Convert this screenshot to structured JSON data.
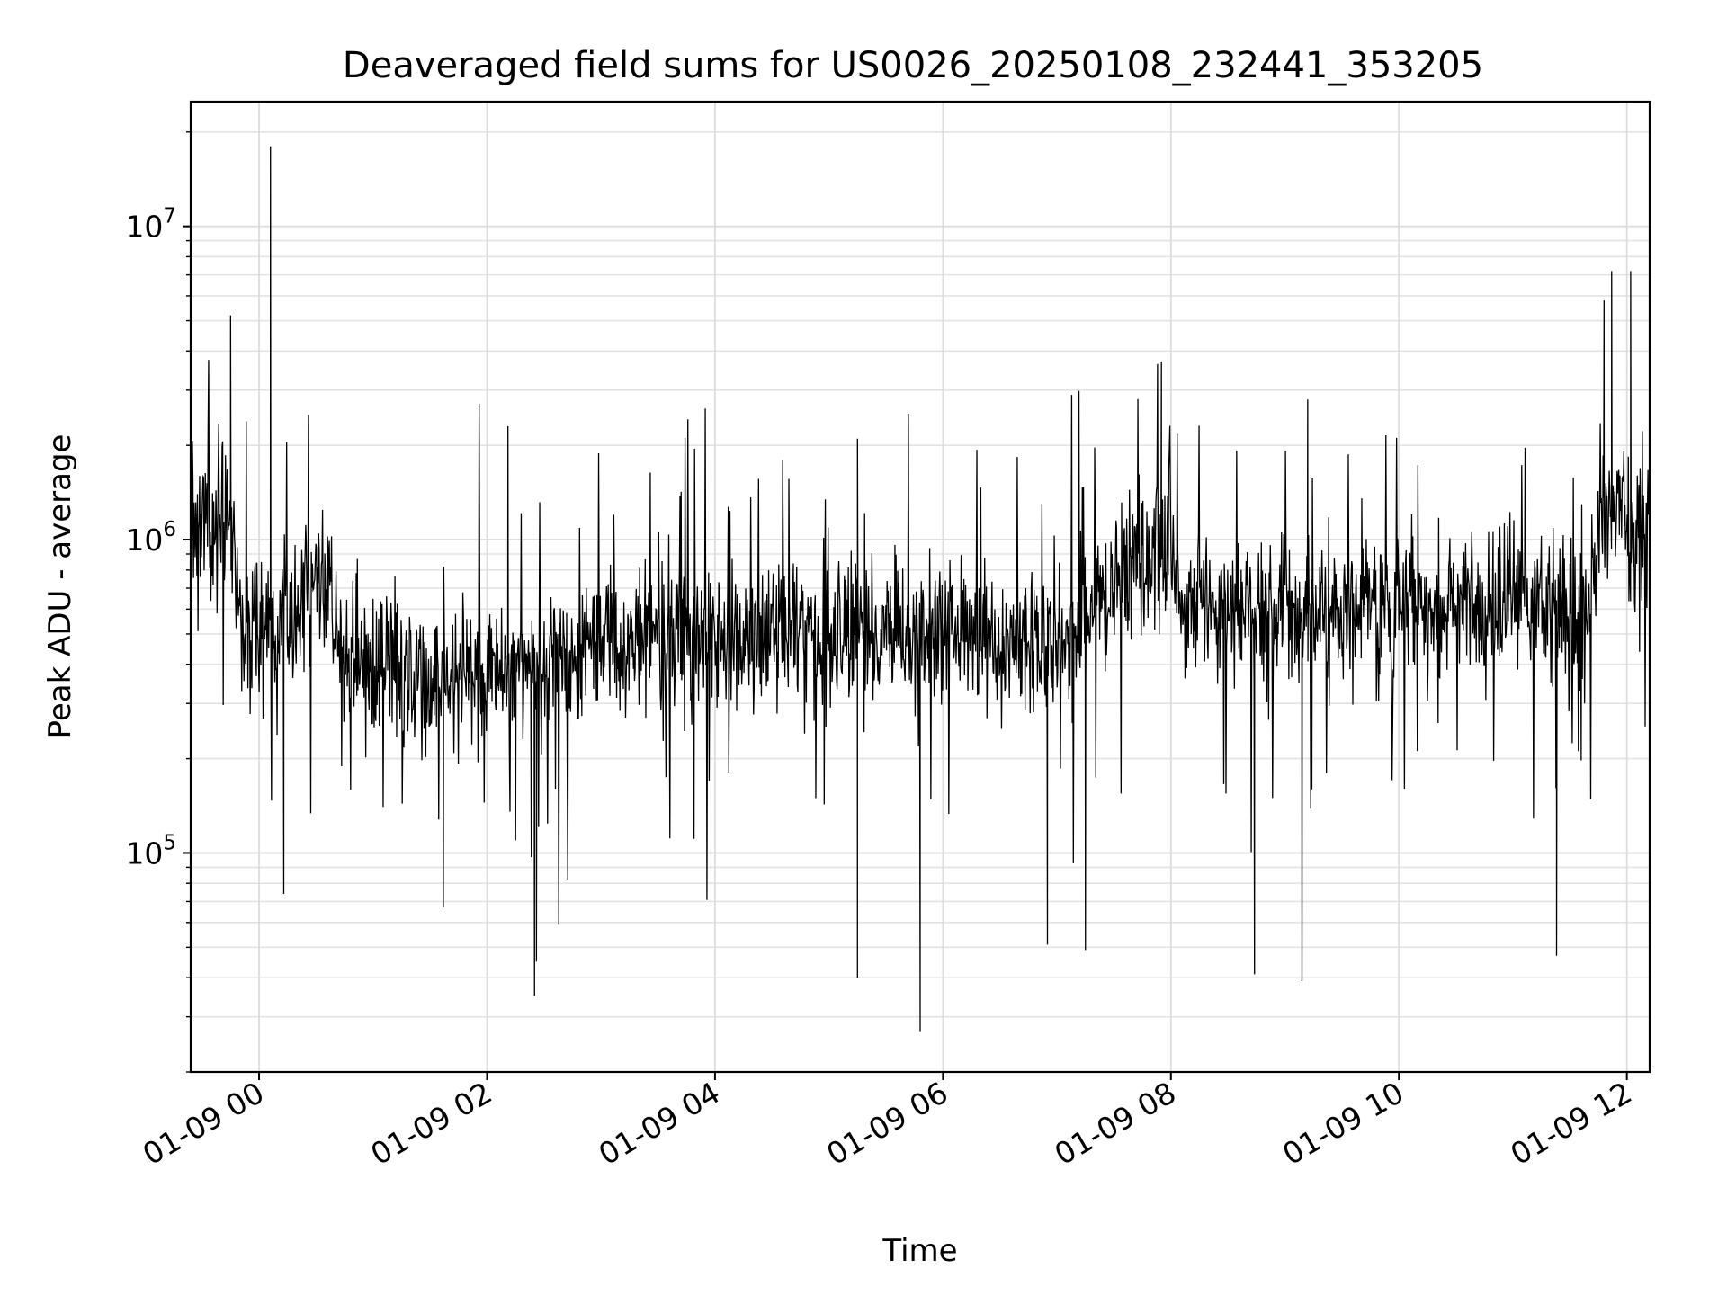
{
  "chart_data": {
    "type": "line",
    "title": "Deaveraged field sums for US0026_20250108_232441_353205",
    "xlabel": "Time",
    "ylabel": "Peak ADU - average",
    "yscale": "log",
    "ylim": [
      20000,
      25000000
    ],
    "xlim": [
      "2025-01-08 23:24",
      "2025-01-09 12:12"
    ],
    "grid": true,
    "legend": "none",
    "x_ticks": [
      {
        "t": "2025-01-09 00:00",
        "label": "01-09 00"
      },
      {
        "t": "2025-01-09 02:00",
        "label": "01-09 02"
      },
      {
        "t": "2025-01-09 04:00",
        "label": "01-09 04"
      },
      {
        "t": "2025-01-09 06:00",
        "label": "01-09 06"
      },
      {
        "t": "2025-01-09 08:00",
        "label": "01-09 08"
      },
      {
        "t": "2025-01-09 10:00",
        "label": "01-09 10"
      },
      {
        "t": "2025-01-09 12:00",
        "label": "01-09 12"
      }
    ],
    "y_ticks": [
      {
        "value": 100000,
        "base": "10",
        "exp": "5"
      },
      {
        "value": 1000000,
        "base": "10",
        "exp": "6"
      },
      {
        "value": 10000000,
        "base": "10",
        "exp": "7"
      }
    ],
    "series": [
      {
        "color": "#000000",
        "baseline": [
          {
            "t": "2025-01-08 23:24",
            "y": 1100000
          },
          {
            "t": "2025-01-08 23:45",
            "y": 1200000
          },
          {
            "t": "2025-01-08 23:50",
            "y": 550000
          },
          {
            "t": "2025-01-09 00:10",
            "y": 450000
          },
          {
            "t": "2025-01-09 00:25",
            "y": 650000
          },
          {
            "t": "2025-01-09 00:35",
            "y": 800000
          },
          {
            "t": "2025-01-09 00:45",
            "y": 380000
          },
          {
            "t": "2025-01-09 02:00",
            "y": 380000
          },
          {
            "t": "2025-01-09 03:00",
            "y": 430000
          },
          {
            "t": "2025-01-09 04:00",
            "y": 480000
          },
          {
            "t": "2025-01-09 05:00",
            "y": 520000
          },
          {
            "t": "2025-01-09 06:00",
            "y": 480000
          },
          {
            "t": "2025-01-09 07:00",
            "y": 480000
          },
          {
            "t": "2025-01-09 07:40",
            "y": 800000
          },
          {
            "t": "2025-01-09 08:00",
            "y": 1000000
          },
          {
            "t": "2025-01-09 08:05",
            "y": 620000
          },
          {
            "t": "2025-01-09 09:00",
            "y": 580000
          },
          {
            "t": "2025-01-09 10:00",
            "y": 600000
          },
          {
            "t": "2025-01-09 11:00",
            "y": 620000
          },
          {
            "t": "2025-01-09 11:40",
            "y": 560000
          },
          {
            "t": "2025-01-09 11:45",
            "y": 1200000
          },
          {
            "t": "2025-01-09 12:12",
            "y": 1100000
          }
        ],
        "extremes": [
          {
            "t": "2025-01-08 23:45",
            "y": 5200000
          },
          {
            "t": "2025-01-09 00:06",
            "y": 18000000
          },
          {
            "t": "2025-01-09 00:13",
            "y": 74000
          },
          {
            "t": "2025-01-09 00:26",
            "y": 2500000
          },
          {
            "t": "2025-01-09 01:37",
            "y": 67000
          },
          {
            "t": "2025-01-09 02:11",
            "y": 2300000
          },
          {
            "t": "2025-01-09 02:25",
            "y": 35000
          },
          {
            "t": "2025-01-09 02:26",
            "y": 45000
          },
          {
            "t": "2025-01-09 05:15",
            "y": 2100000
          },
          {
            "t": "2025-01-09 05:15",
            "y": 40000
          },
          {
            "t": "2025-01-09 05:48",
            "y": 27000
          },
          {
            "t": "2025-01-09 06:55",
            "y": 51000
          },
          {
            "t": "2025-01-09 07:15",
            "y": 49000
          },
          {
            "t": "2025-01-09 07:55",
            "y": 3700000
          },
          {
            "t": "2025-01-09 08:44",
            "y": 41000
          },
          {
            "t": "2025-01-09 09:09",
            "y": 39000
          },
          {
            "t": "2025-01-09 09:12",
            "y": 2800000
          },
          {
            "t": "2025-01-09 11:23",
            "y": 47000
          },
          {
            "t": "2025-01-09 11:48",
            "y": 5800000
          },
          {
            "t": "2025-01-09 11:52",
            "y": 7200000
          },
          {
            "t": "2025-01-09 12:02",
            "y": 7200000
          }
        ]
      }
    ]
  }
}
